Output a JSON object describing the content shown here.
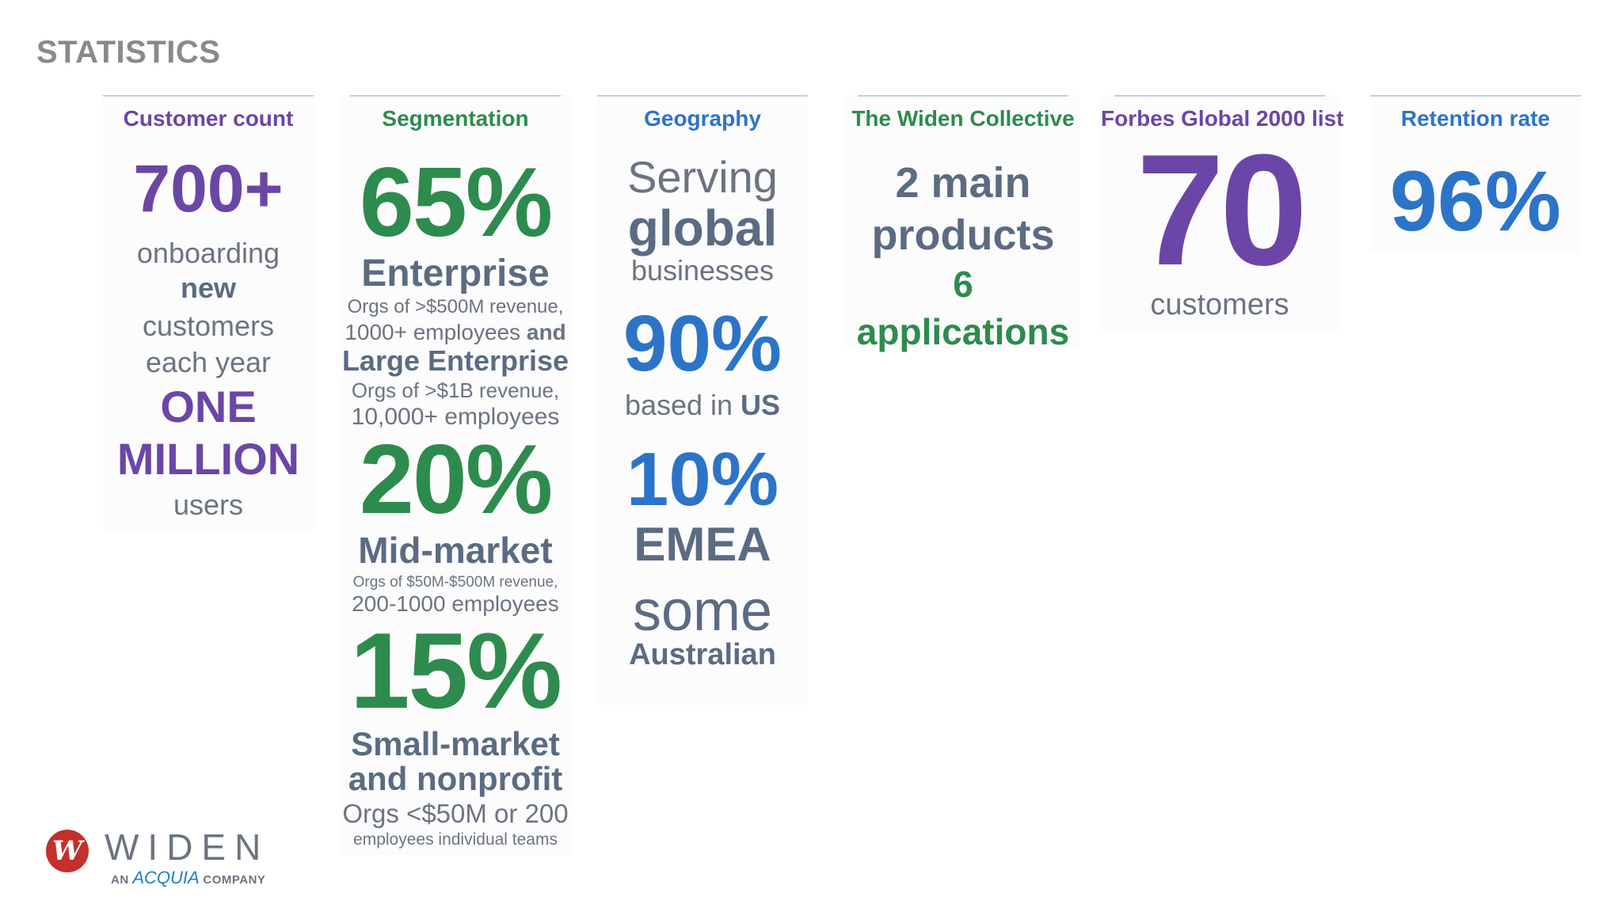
{
  "slide": {
    "title": "STATISTICS"
  },
  "columns": {
    "customer_count": {
      "header": "Customer count",
      "big": "700+",
      "line1": "onboarding",
      "line2": "new",
      "line3": "customers",
      "line4": "each year",
      "one": "ONE",
      "million": "MILLION",
      "users": "users"
    },
    "segmentation": {
      "header": "Segmentation",
      "p1": "65%",
      "ent": "Enterprise",
      "ent_d1": "Orgs of >$500M revenue,",
      "ent_d2a": "1000+ employees ",
      "ent_d2b": "and",
      "large": "Large Enterprise",
      "large_d1": "Orgs of >$1B revenue,",
      "large_d2": "10,000+ employees",
      "p2": "20%",
      "mid": "Mid-market",
      "mid_d1": "Orgs of $50M-$500M revenue,",
      "mid_d2": "200-1000 employees",
      "p3": "15%",
      "small1": "Small-market",
      "small2": "and nonprofit",
      "small_d1": "Orgs <$50M or 200",
      "small_d2": "employees individual teams"
    },
    "geography": {
      "header": "Geography",
      "serving": "Serving",
      "global": "global",
      "businesses": "businesses",
      "us_pct": "90%",
      "based_in": "based in ",
      "us": "US",
      "emea_pct": "10%",
      "emea": "EMEA",
      "some": "some",
      "australian": "Australian"
    },
    "collective": {
      "header": "The Widen Collective",
      "l1": "2 main",
      "l2": "products",
      "l3": "6",
      "l4": "applications"
    },
    "forbes": {
      "header": "Forbes Global 2000 list",
      "big": "70",
      "sub": "customers"
    },
    "retention": {
      "header": "Retention rate",
      "big": "96%"
    }
  },
  "logo": {
    "wordmark": "WIDEN",
    "prefix": "AN",
    "acquia": "ACQUIA",
    "suffix": "COMPANY"
  },
  "colors": {
    "purple": "#6b46a6",
    "green": "#2e8b4e",
    "blue": "#2c74c8",
    "slate": "#5b6b82",
    "logo_red": "#c4302b",
    "acquia_blue": "#1f7fcf"
  }
}
